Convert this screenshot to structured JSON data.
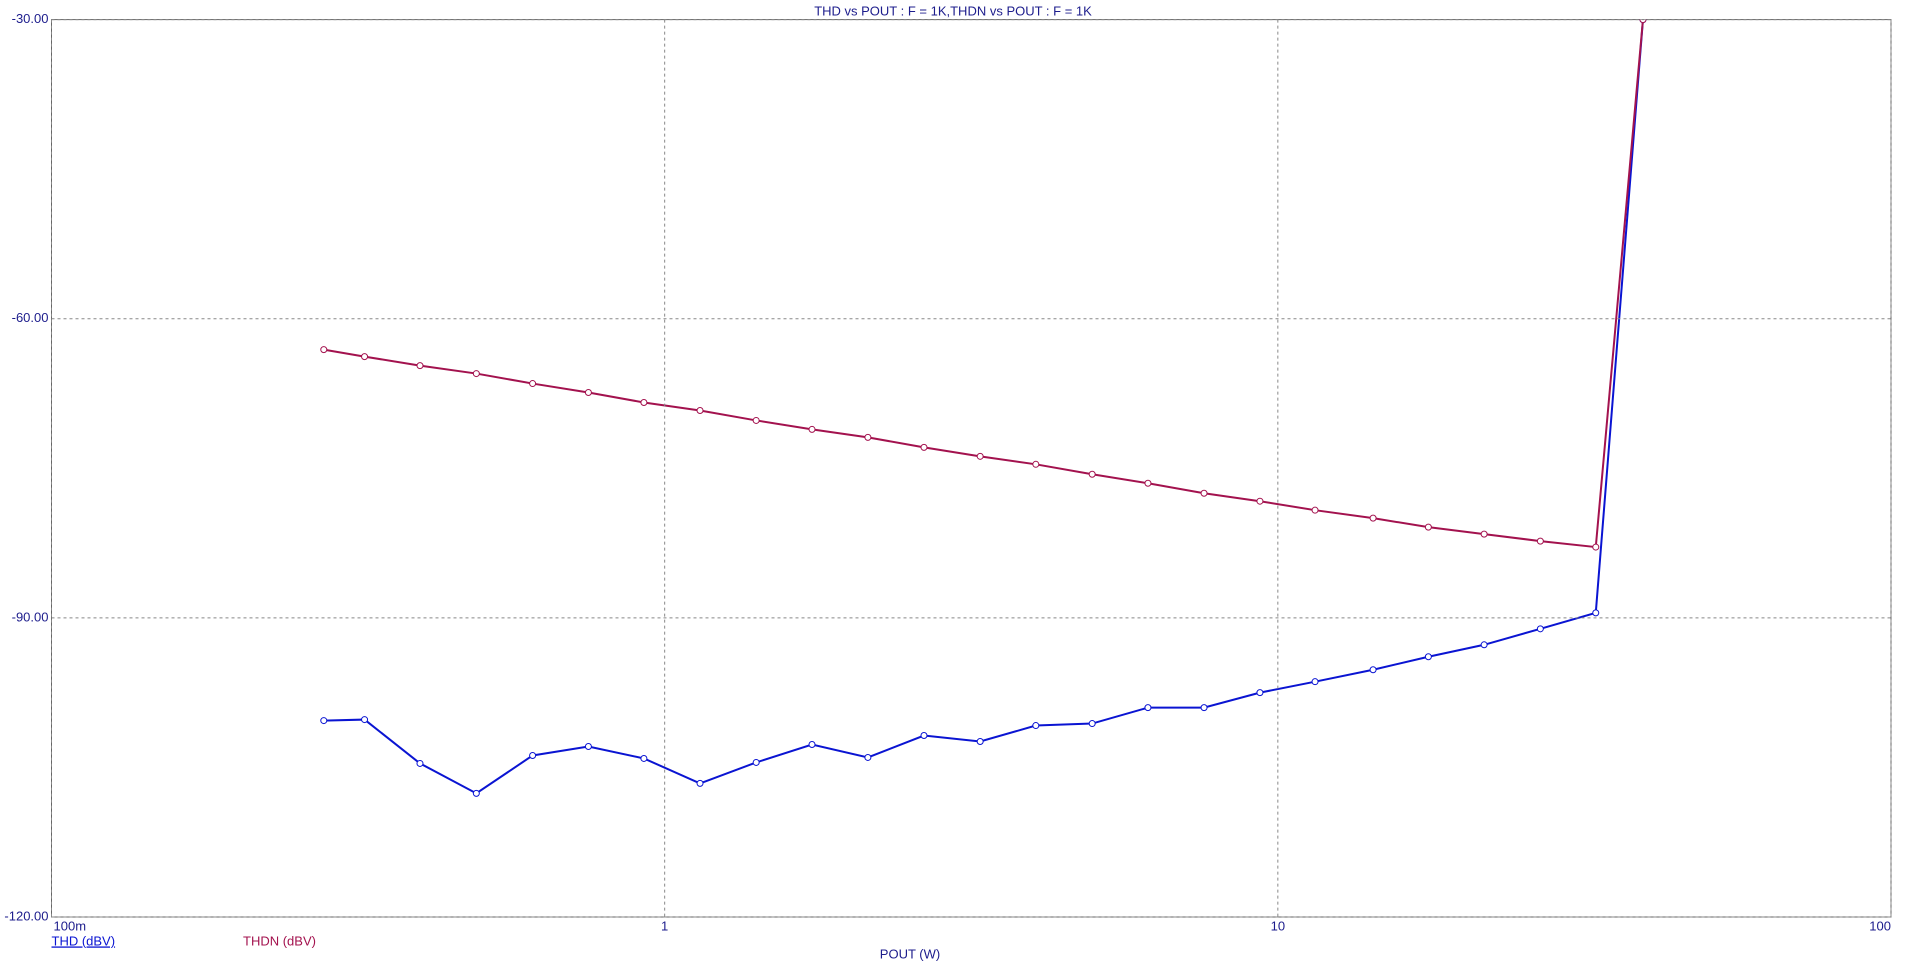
{
  "chart_data": {
    "type": "line",
    "title": "THD vs POUT : F = 1K,THDN vs POUT : F = 1K",
    "x_label": "POUT (W)",
    "x_scale": "log",
    "grid": true,
    "x": [
      0.278,
      0.324,
      0.399,
      0.493,
      0.609,
      0.751,
      0.925,
      1.142,
      1.41,
      1.739,
      2.145,
      2.648,
      3.27,
      4.03,
      4.98,
      6.14,
      7.58,
      9.35,
      11.5,
      14.3,
      17.6,
      21.7,
      26.8,
      33.0,
      39.4
    ],
    "series": [
      {
        "name": "THD (dBV)",
        "color": "#0a14d2",
        "values": [
          -100.3,
          -100.2,
          -104.6,
          -107.6,
          -103.8,
          -102.9,
          -104.1,
          -106.6,
          -104.5,
          -102.7,
          -104.0,
          -101.8,
          -102.4,
          -100.8,
          -100.6,
          -99.0,
          -99.0,
          -97.5,
          -96.4,
          -95.2,
          -93.9,
          -92.7,
          -91.1,
          -89.5,
          -30
        ]
      },
      {
        "name": "THDN (dBV)",
        "color": "#a3124e",
        "values": [
          -63.1,
          -63.8,
          -64.7,
          -65.5,
          -66.5,
          -67.4,
          -68.4,
          -69.2,
          -70.2,
          -71.1,
          -71.9,
          -72.9,
          -73.8,
          -74.6,
          -75.6,
          -76.5,
          -77.5,
          -78.3,
          -79.2,
          -80.0,
          -80.9,
          -81.6,
          -82.3,
          -82.9,
          -30
        ]
      }
    ],
    "xlim": [
      0.1,
      100
    ],
    "xticks": [
      {
        "value": 0.1,
        "label": "100m"
      },
      1,
      10,
      100
    ],
    "ylim": [
      -120,
      -30
    ],
    "yticks": [
      {
        "value": -120,
        "label": "-120.00"
      },
      {
        "value": -90,
        "label": "-90.00"
      },
      {
        "value": -60,
        "label": "-60.00"
      },
      {
        "value": -30,
        "label": "-30.00"
      }
    ]
  }
}
